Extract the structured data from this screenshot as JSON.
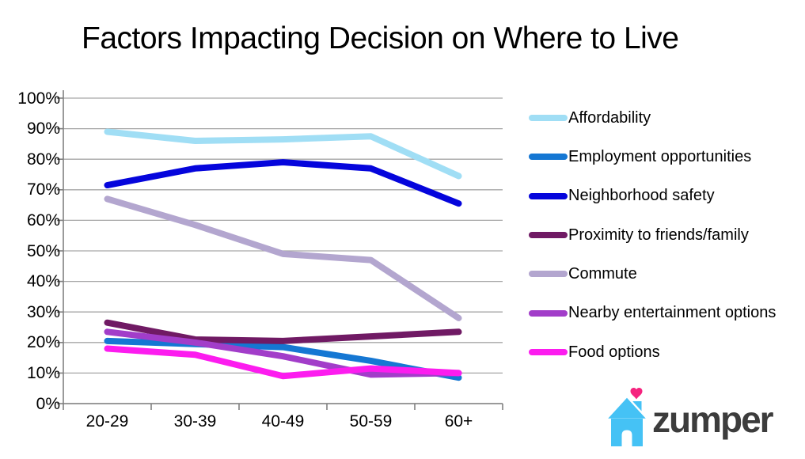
{
  "title": "Factors Impacting Decision on Where to Live",
  "chart_data": {
    "type": "line",
    "categories": [
      "20-29",
      "30-39",
      "40-49",
      "50-59",
      "60+"
    ],
    "series": [
      {
        "name": "Affordability",
        "color": "#A0DEF5",
        "values": [
          89,
          86,
          86.5,
          87.5,
          74.5
        ]
      },
      {
        "name": "Employment opportunities",
        "color": "#1577D3",
        "values": [
          20.5,
          19.5,
          18.5,
          14,
          8.5
        ]
      },
      {
        "name": "Neighborhood safety",
        "color": "#0505DC",
        "values": [
          71.5,
          77,
          79,
          77,
          65.5
        ]
      },
      {
        "name": "Proximity to friends/family",
        "color": "#701A64",
        "values": [
          26.5,
          21,
          20.5,
          22,
          23.5
        ]
      },
      {
        "name": "Commute",
        "color": "#B3A6CF",
        "values": [
          67,
          58.5,
          49,
          47,
          28
        ]
      },
      {
        "name": "Nearby entertainment options",
        "color": "#A23DC9",
        "values": [
          23.5,
          20,
          15.5,
          9.5,
          10
        ]
      },
      {
        "name": "Food options",
        "color": "#FC1CEF",
        "values": [
          18,
          16,
          9,
          11.5,
          10
        ]
      }
    ],
    "y_axis": {
      "min": 0,
      "max": 100,
      "step": 10,
      "tick_labels": [
        "100%",
        "90%",
        "80%",
        "70%",
        "60%",
        "50%",
        "40%",
        "30%",
        "20%",
        "10%",
        "0%"
      ]
    },
    "grid": true,
    "legend_position": "right",
    "colors_meta": {
      "gridline": "#A6A6A6",
      "axis": "#808080"
    }
  },
  "branding": {
    "logo_text": "zumper",
    "house_color": "#45C2F5",
    "heart_color": "#F5237E",
    "text_color": "#3C3C3C"
  }
}
